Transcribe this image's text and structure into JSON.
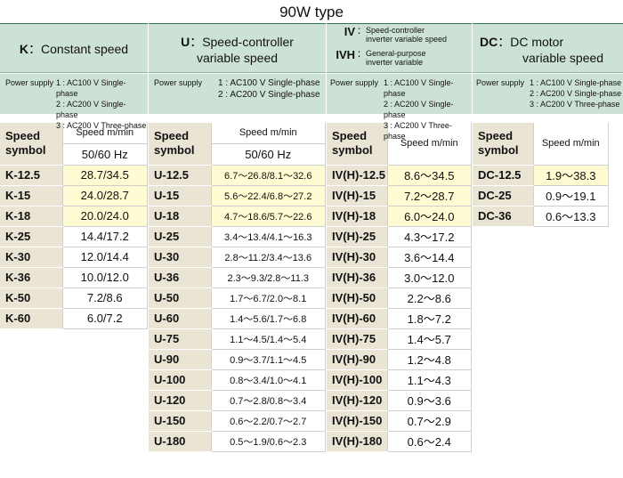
{
  "title": "90W type",
  "power_label": "Power supply",
  "power_lines": [
    "1 : AC100 V Single-phase",
    "2 : AC200 V Single-phase",
    "3 : AC200 V Three-phase"
  ],
  "speed_symbol_label_1": "Speed",
  "speed_symbol_label_2": "symbol",
  "speed_unit_label": "Speed m/min",
  "hz_label": "50/60 Hz",
  "groups": {
    "k": {
      "code": "K",
      "sep": "：",
      "name": "Constant speed"
    },
    "u": {
      "code": "U",
      "sep": "：",
      "name_1": "Speed-controller",
      "name_2": "variable speed"
    },
    "iv": {
      "code_iv": "IV",
      "sep": "：",
      "desc_iv_1": "Speed-controller",
      "desc_iv_2": "inverter variable speed",
      "code_ivh": "IVH",
      "desc_ivh_1": "General-purpose",
      "desc_ivh_2": "inverter variable"
    },
    "dc": {
      "code": "DC",
      "sep": "：",
      "name_1": "DC motor",
      "name_2": "variable speed"
    }
  },
  "k_rows": [
    {
      "symbol": "K-12.5",
      "speed": "28.7/34.5",
      "highlight": true
    },
    {
      "symbol": "K-15",
      "speed": "24.0/28.7",
      "highlight": true
    },
    {
      "symbol": "K-18",
      "speed": "20.0/24.0",
      "highlight": true
    },
    {
      "symbol": "K-25",
      "speed": "14.4/17.2",
      "highlight": false
    },
    {
      "symbol": "K-30",
      "speed": "12.0/14.4",
      "highlight": false
    },
    {
      "symbol": "K-36",
      "speed": "10.0/12.0",
      "highlight": false
    },
    {
      "symbol": "K-50",
      "speed": "7.2/8.6",
      "highlight": false
    },
    {
      "symbol": "K-60",
      "speed": "6.0/7.2",
      "highlight": false
    }
  ],
  "u_rows": [
    {
      "symbol": "U-12.5",
      "speed": "6.7～26.8/8.1～32.6",
      "highlight": true
    },
    {
      "symbol": "U-15",
      "speed": "5.6～22.4/6.8～27.2",
      "highlight": true
    },
    {
      "symbol": "U-18",
      "speed": "4.7～18.6/5.7～22.6",
      "highlight": true
    },
    {
      "symbol": "U-25",
      "speed": "3.4～13.4/4.1～16.3",
      "highlight": false
    },
    {
      "symbol": "U-30",
      "speed": "2.8～11.2/3.4～13.6",
      "highlight": false
    },
    {
      "symbol": "U-36",
      "speed": "2.3～9.3/2.8～11.3",
      "highlight": false
    },
    {
      "symbol": "U-50",
      "speed": "1.7～6.7/2.0～8.1",
      "highlight": false
    },
    {
      "symbol": "U-60",
      "speed": "1.4～5.6/1.7～6.8",
      "highlight": false
    },
    {
      "symbol": "U-75",
      "speed": "1.1～4.5/1.4～5.4",
      "highlight": false
    },
    {
      "symbol": "U-90",
      "speed": "0.9～3.7/1.1～4.5",
      "highlight": false
    },
    {
      "symbol": "U-100",
      "speed": "0.8～3.4/1.0～4.1",
      "highlight": false
    },
    {
      "symbol": "U-120",
      "speed": "0.7～2.8/0.8～3.4",
      "highlight": false
    },
    {
      "symbol": "U-150",
      "speed": "0.6～2.2/0.7～2.7",
      "highlight": false
    },
    {
      "symbol": "U-180",
      "speed": "0.5～1.9/0.6～2.3",
      "highlight": false
    }
  ],
  "iv_rows": [
    {
      "symbol": "IV(H)-12.5",
      "speed": "8.6～34.5",
      "highlight": true
    },
    {
      "symbol": "IV(H)-15",
      "speed": "7.2～28.7",
      "highlight": true
    },
    {
      "symbol": "IV(H)-18",
      "speed": "6.0～24.0",
      "highlight": true
    },
    {
      "symbol": "IV(H)-25",
      "speed": "4.3～17.2",
      "highlight": false
    },
    {
      "symbol": "IV(H)-30",
      "speed": "3.6～14.4",
      "highlight": false
    },
    {
      "symbol": "IV(H)-36",
      "speed": "3.0～12.0",
      "highlight": false
    },
    {
      "symbol": "IV(H)-50",
      "speed": "2.2～8.6",
      "highlight": false
    },
    {
      "symbol": "IV(H)-60",
      "speed": "1.8～7.2",
      "highlight": false
    },
    {
      "symbol": "IV(H)-75",
      "speed": "1.4～5.7",
      "highlight": false
    },
    {
      "symbol": "IV(H)-90",
      "speed": "1.2～4.8",
      "highlight": false
    },
    {
      "symbol": "IV(H)-100",
      "speed": "1.1～4.3",
      "highlight": false
    },
    {
      "symbol": "IV(H)-120",
      "speed": "0.9～3.6",
      "highlight": false
    },
    {
      "symbol": "IV(H)-150",
      "speed": "0.7～2.9",
      "highlight": false
    },
    {
      "symbol": "IV(H)-180",
      "speed": "0.6～2.4",
      "highlight": false
    }
  ],
  "dc_rows": [
    {
      "symbol": "DC-12.5",
      "speed": "1.9～38.3",
      "highlight": true
    },
    {
      "symbol": "DC-25",
      "speed": "0.9～19.1",
      "highlight": false
    },
    {
      "symbol": "DC-36",
      "speed": "0.6～13.3",
      "highlight": false
    }
  ]
}
